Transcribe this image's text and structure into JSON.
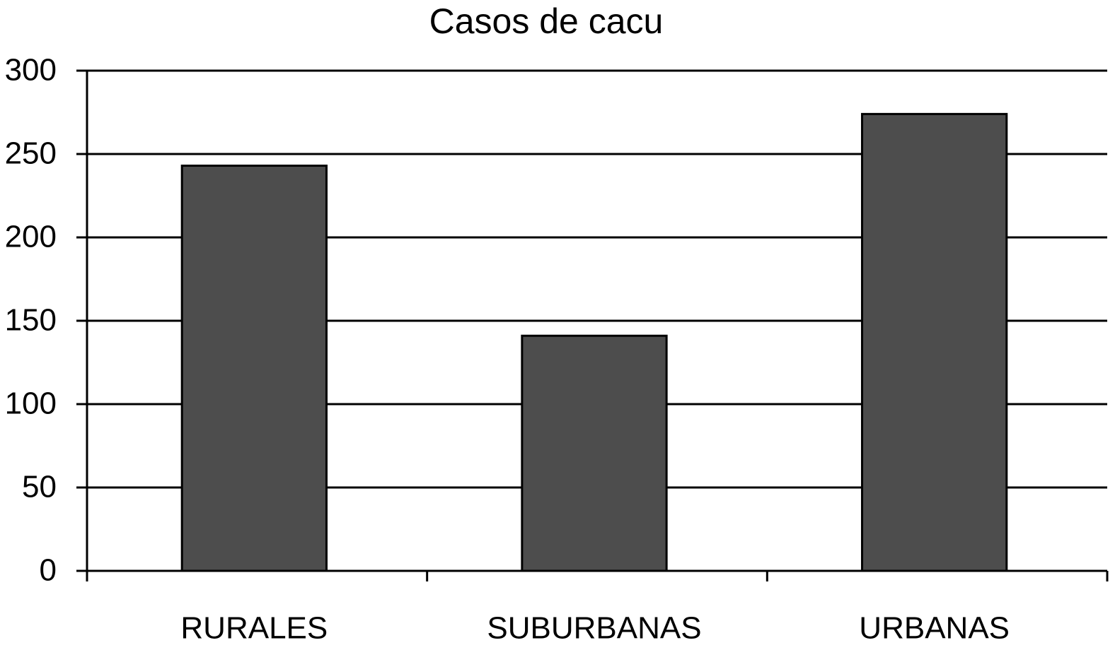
{
  "chart_data": {
    "type": "bar",
    "title": "Casos de cacu",
    "categories": [
      "RURALES",
      "SUBURBANAS",
      "URBANAS"
    ],
    "values": [
      243,
      141,
      274
    ],
    "color": "#4d4d4d",
    "ylim": [
      0,
      300
    ],
    "yticks": [
      0,
      50,
      100,
      150,
      200,
      250,
      300
    ],
    "grid": true
  }
}
